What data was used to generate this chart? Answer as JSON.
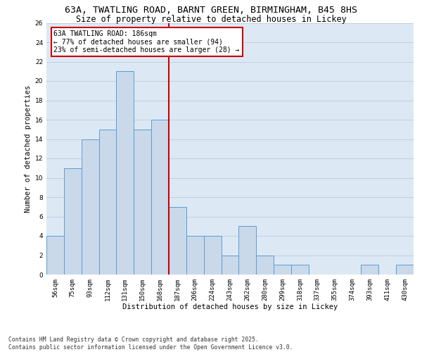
{
  "title_line1": "63A, TWATLING ROAD, BARNT GREEN, BIRMINGHAM, B45 8HS",
  "title_line2": "Size of property relative to detached houses in Lickey",
  "xlabel": "Distribution of detached houses by size in Lickey",
  "ylabel": "Number of detached properties",
  "bin_labels": [
    "56sqm",
    "75sqm",
    "93sqm",
    "112sqm",
    "131sqm",
    "150sqm",
    "168sqm",
    "187sqm",
    "206sqm",
    "224sqm",
    "243sqm",
    "262sqm",
    "280sqm",
    "299sqm",
    "318sqm",
    "337sqm",
    "355sqm",
    "374sqm",
    "393sqm",
    "411sqm",
    "430sqm"
  ],
  "bar_values": [
    4,
    11,
    14,
    15,
    21,
    15,
    16,
    7,
    4,
    4,
    2,
    5,
    2,
    1,
    1,
    0,
    0,
    0,
    1,
    0,
    1
  ],
  "bar_color": "#c9d9ea",
  "bar_edge_color": "#5b9bd5",
  "vline_x": 6.5,
  "vline_color": "#cc0000",
  "annotation_title": "63A TWATLING ROAD: 186sqm",
  "annotation_line2": "← 77% of detached houses are smaller (94)",
  "annotation_line3": "23% of semi-detached houses are larger (28) →",
  "annotation_box_color": "#cc0000",
  "annotation_bg": "#ffffff",
  "ylim": [
    0,
    26
  ],
  "yticks": [
    0,
    2,
    4,
    6,
    8,
    10,
    12,
    14,
    16,
    18,
    20,
    22,
    24,
    26
  ],
  "grid_color": "#c0cfe0",
  "bg_color": "#dce9f5",
  "footnote1": "Contains HM Land Registry data © Crown copyright and database right 2025.",
  "footnote2": "Contains public sector information licensed under the Open Government Licence v3.0.",
  "title_fontsize": 9.5,
  "subtitle_fontsize": 8.5,
  "label_fontsize": 7.5,
  "tick_fontsize": 6.5,
  "annot_fontsize": 7.0,
  "footnote_fontsize": 5.8
}
